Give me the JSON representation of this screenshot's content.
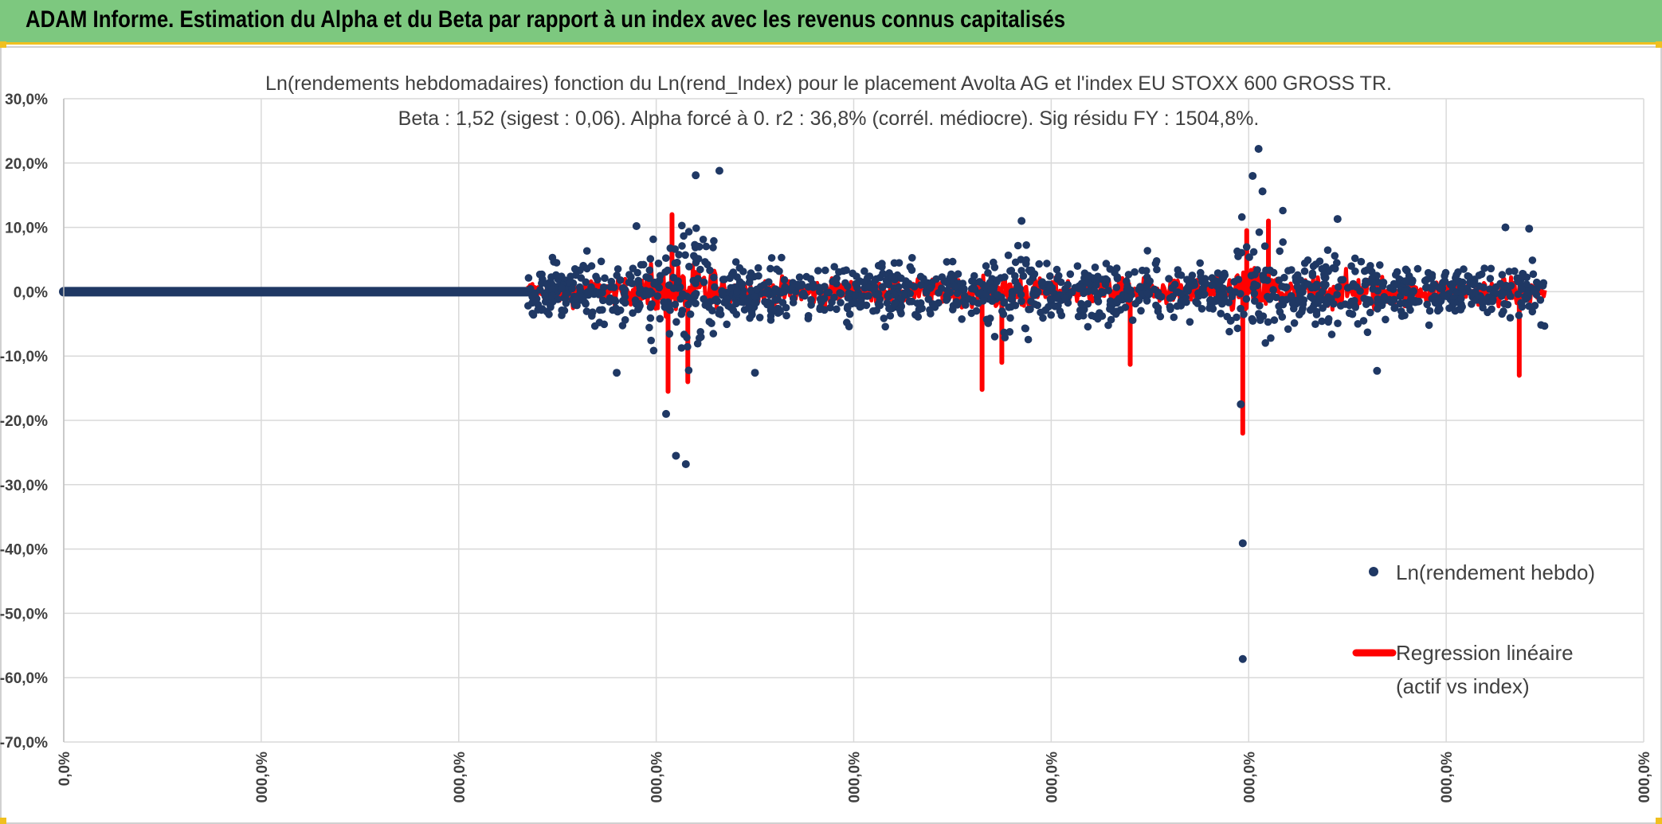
{
  "banner": {
    "title": "ADAM Informe. Estimation du Alpha et du Beta par rapport à un index avec les revenus connus capitalisés",
    "bg_color": "#7dc87f"
  },
  "chart_data": {
    "type": "scatter",
    "title_line1": "Ln(rendements hebdomadaires) fonction du Ln(rend_Index) pour le placement Avolta AG et l'index EU STOXX 600 GROSS TR.",
    "title_line2": "Beta : 1,52 (sigest : 0,06). Alpha forcé à 0. r2 : 36,8% (corrél. médiocre). Sig résidu FY : 1504,8%.",
    "y_ticks": [
      "30,0%",
      "20,0%",
      "10,0%",
      "0,0%",
      "-10,0%",
      "-20,0%",
      "-30,0%",
      "-40,0%",
      "-50,0%",
      "-60,0%",
      "-70,0%"
    ],
    "ylim": [
      -70,
      30
    ],
    "x_ticks": [
      "0,0%",
      "000,0%",
      "000,0%",
      "000,0%",
      "000,0%",
      "000,0%",
      "000,0%",
      "000,0%",
      "000,0%"
    ],
    "xlim": [
      0,
      8
    ],
    "grid": true,
    "legend_position": "right",
    "series": [
      {
        "name": "Ln(rendement hebdo)",
        "marker": "dot",
        "color": "#1f3864",
        "flat_segment": {
          "x_start": 0,
          "x_end": 2.35,
          "y": 0
        },
        "data_range": {
          "x_start": 2.35,
          "x_end": 7.5
        }
      },
      {
        "name_line1": "Regression linéaire",
        "name_line2": "(actif vs index)",
        "marker": "line",
        "color": "#ff0000"
      }
    ],
    "notable_points": [
      {
        "x": 3.1,
        "y": -25.5
      },
      {
        "x": 3.15,
        "y": -26.8
      },
      {
        "x": 3.05,
        "y": -19.0
      },
      {
        "x": 3.32,
        "y": 18.8
      },
      {
        "x": 3.2,
        "y": 18.1
      },
      {
        "x": 6.05,
        "y": 22.2
      },
      {
        "x": 6.02,
        "y": 18.0
      },
      {
        "x": 6.07,
        "y": 15.6
      },
      {
        "x": 5.97,
        "y": -39.1
      },
      {
        "x": 5.97,
        "y": -57.1
      },
      {
        "x": 5.96,
        "y": -17.5
      },
      {
        "x": 4.85,
        "y": 11.0
      },
      {
        "x": 6.45,
        "y": 11.3
      },
      {
        "x": 7.3,
        "y": 10.0
      },
      {
        "x": 7.42,
        "y": 9.8
      },
      {
        "x": 2.9,
        "y": 10.2
      },
      {
        "x": 2.8,
        "y": -12.6
      },
      {
        "x": 3.5,
        "y": -12.6
      },
      {
        "x": 6.65,
        "y": -12.3
      }
    ],
    "notable_regression_spikes": [
      {
        "x": 3.08,
        "y": 12.0
      },
      {
        "x": 3.06,
        "y": -15.5
      },
      {
        "x": 3.16,
        "y": -14.0
      },
      {
        "x": 5.97,
        "y": -22.0
      },
      {
        "x": 5.99,
        "y": 9.5
      },
      {
        "x": 4.65,
        "y": -15.2
      },
      {
        "x": 6.1,
        "y": 11.0
      },
      {
        "x": 7.37,
        "y": -13.0
      },
      {
        "x": 4.75,
        "y": -11.0
      },
      {
        "x": 5.4,
        "y": -11.3
      }
    ]
  }
}
